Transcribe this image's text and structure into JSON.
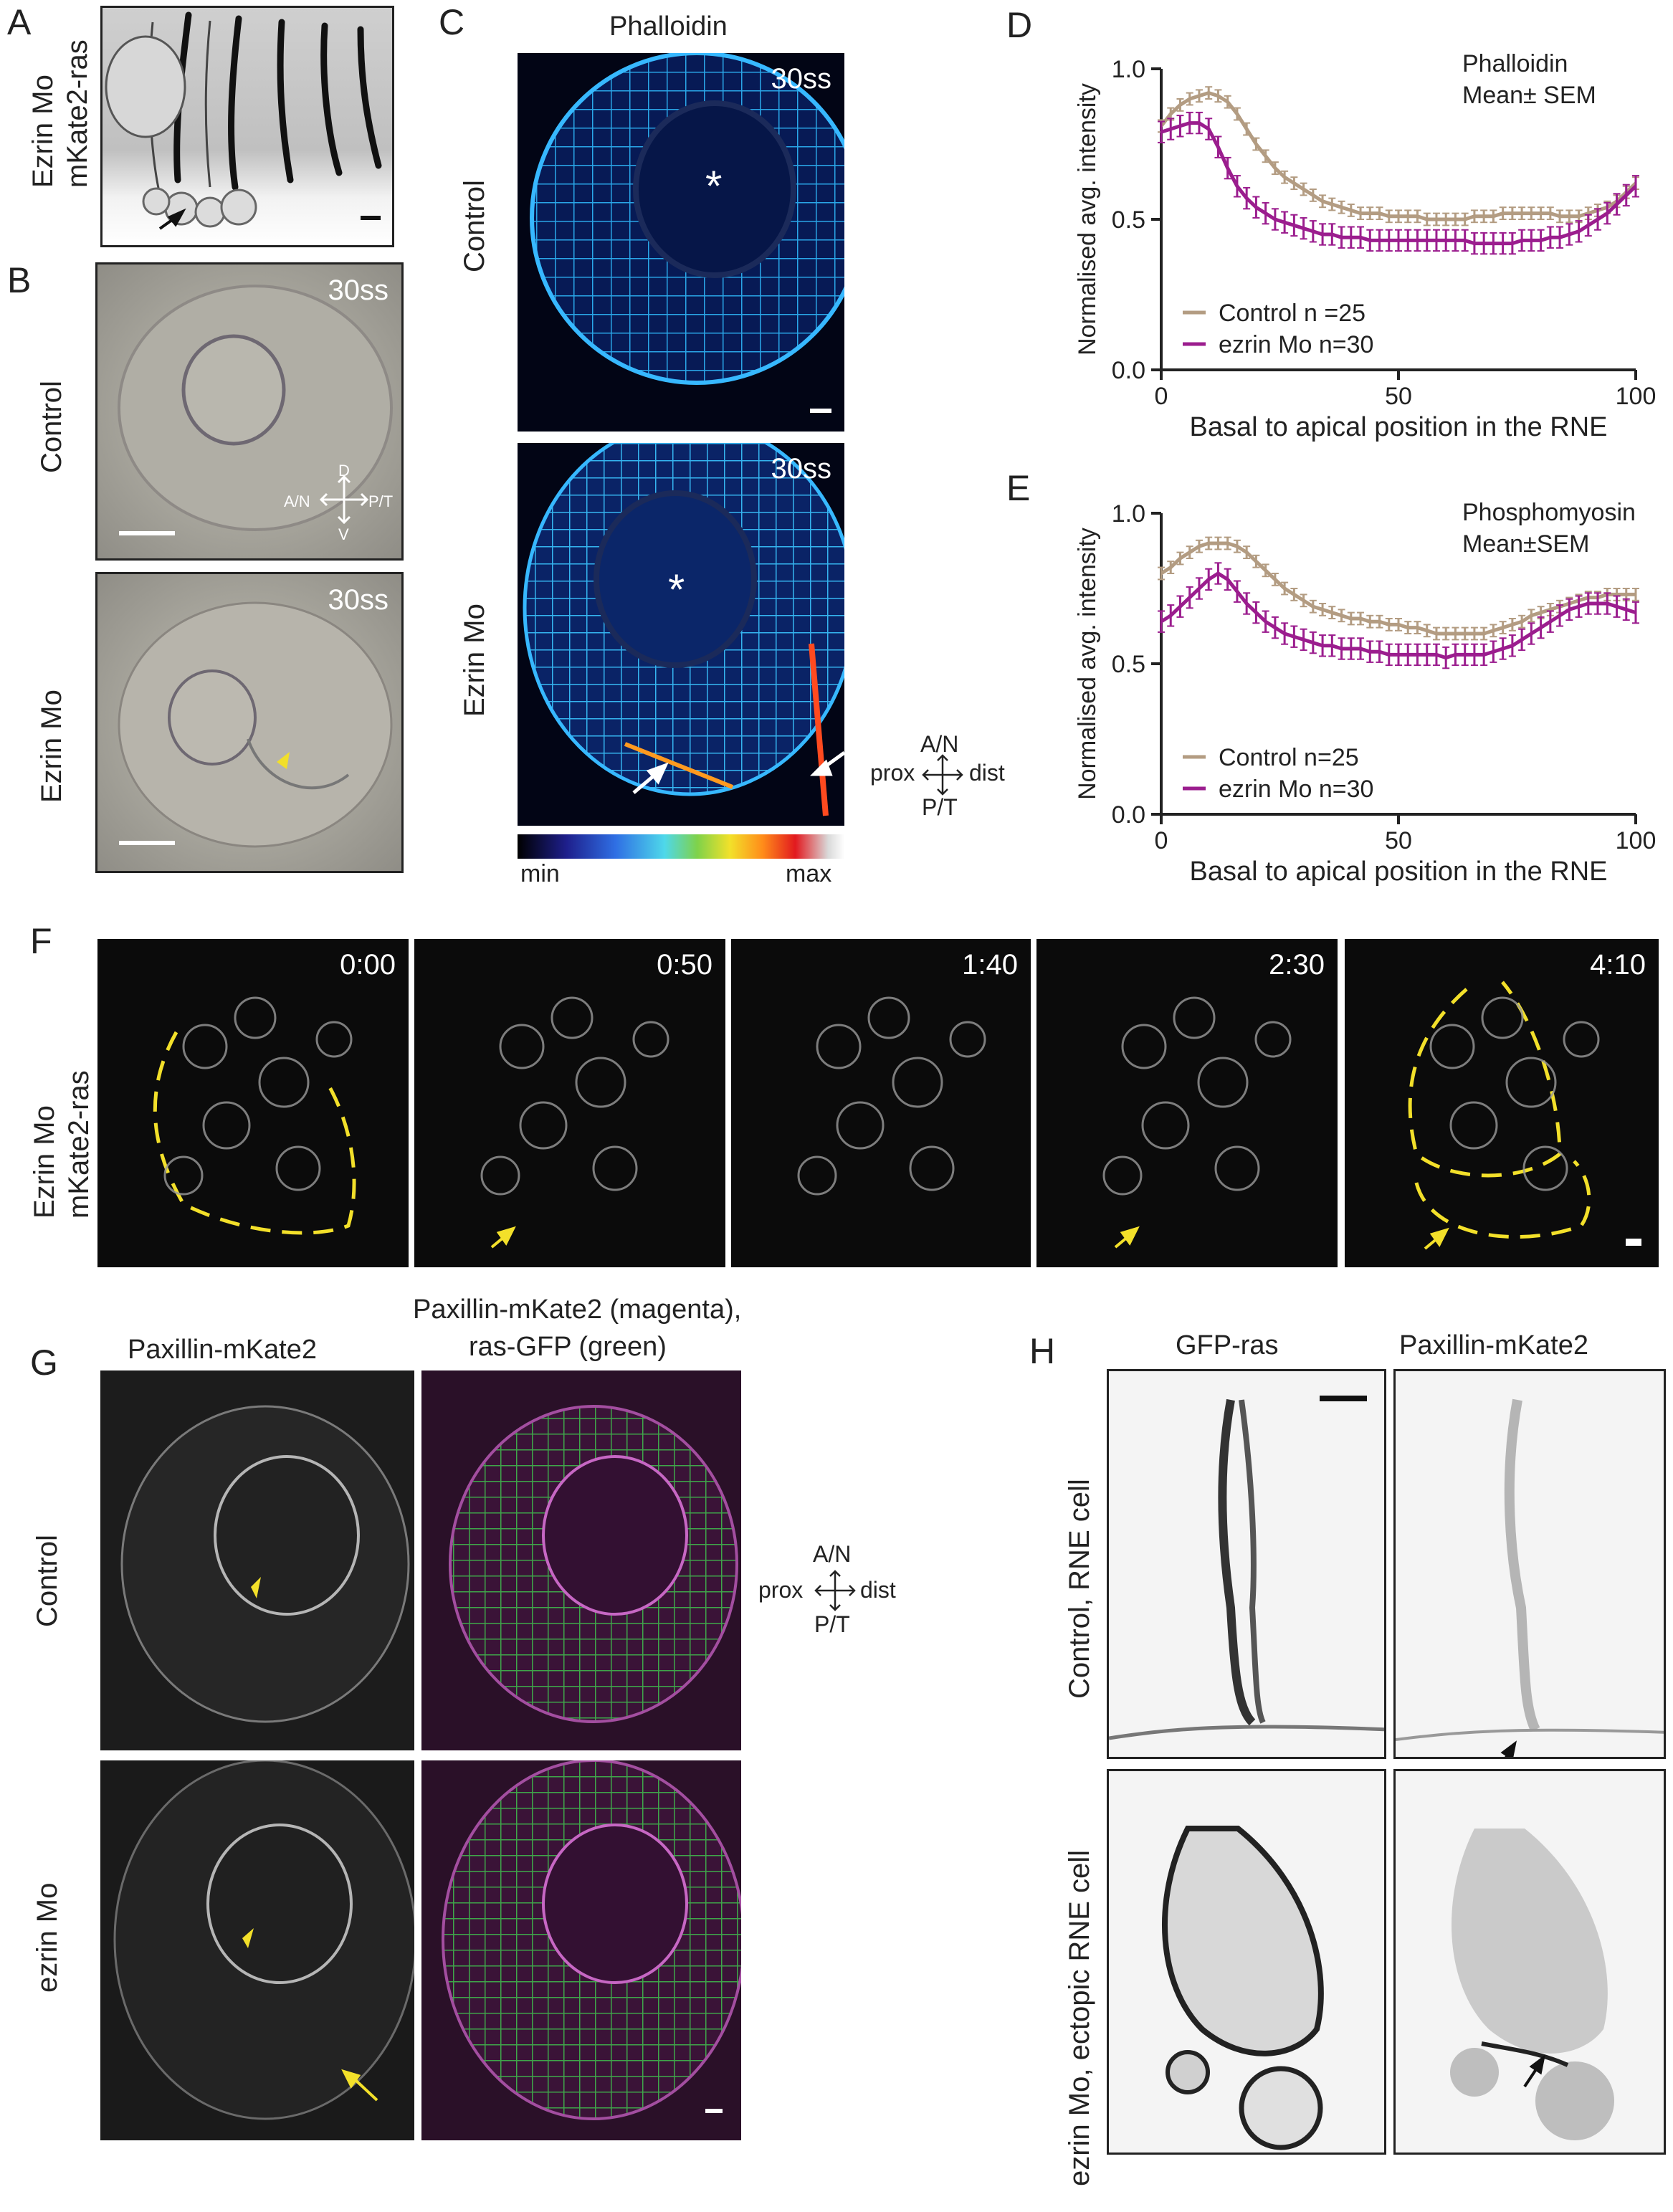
{
  "panel_letters": [
    "A",
    "B",
    "C",
    "D",
    "E",
    "F",
    "G",
    "H"
  ],
  "A": {
    "rot_label_1": "Ezrin Mo",
    "rot_label_2": "mKate2-ras"
  },
  "B": {
    "row1": "Control",
    "row2": "Ezrin Mo",
    "ts": "30ss",
    "axis": {
      "d": "D",
      "v": "V",
      "an": "A/N",
      "pt": "P/T"
    }
  },
  "C": {
    "title": "Phalloidin",
    "row1": "Control",
    "row2": "Ezrin Mo",
    "ts": "30ss",
    "colorbar_min": "min",
    "colorbar_max": "max",
    "axis": {
      "top": "A/N",
      "bottom": "P/T",
      "left": "prox",
      "right": "dist"
    }
  },
  "F": {
    "rot_label_1": "Ezrin Mo",
    "rot_label_2": "mKate2-ras",
    "times": [
      "0:00",
      "0:50",
      "1:40",
      "2:30",
      "4:10"
    ]
  },
  "G": {
    "col1": "Paxillin-mKate2",
    "col2_line1": "Paxillin-mKate2 (magenta),",
    "col2_line2": "ras-GFP (green)",
    "row1": "Control",
    "row2": "ezrin Mo",
    "axis": {
      "top": "A/N",
      "bottom": "P/T",
      "left": "prox",
      "right": "dist"
    }
  },
  "H": {
    "col1": "GFP-ras",
    "col2": "Paxillin-mKate2",
    "row1": "Control, RNE cell",
    "row2": "ezrin Mo, ectopic RNE cell"
  },
  "chart_data": [
    {
      "type": "line",
      "panel": "D",
      "annotation_1": "Phalloidin",
      "annotation_2": "Mean± SEM",
      "xlabel": "Basal to apical position in the RNE",
      "ylabel": "Normalised avg.  intensity",
      "xlim": [
        0,
        100
      ],
      "ylim": [
        0,
        1.0
      ],
      "xticks": [
        "0",
        "50",
        "100"
      ],
      "yticks": [
        "0.0",
        "0.5",
        "1.0"
      ],
      "x": [
        0,
        2,
        4,
        6,
        8,
        10,
        12,
        14,
        16,
        18,
        20,
        22,
        24,
        26,
        28,
        30,
        32,
        34,
        36,
        38,
        40,
        42,
        44,
        46,
        48,
        50,
        52,
        54,
        56,
        58,
        60,
        62,
        64,
        66,
        68,
        70,
        72,
        74,
        76,
        78,
        80,
        82,
        84,
        86,
        88,
        90,
        92,
        94,
        96,
        98,
        100
      ],
      "series": [
        {
          "name": "Control n =25",
          "color": "#b39c82",
          "sem": 0.02,
          "values": [
            0.81,
            0.85,
            0.88,
            0.9,
            0.91,
            0.92,
            0.91,
            0.89,
            0.85,
            0.8,
            0.75,
            0.71,
            0.67,
            0.64,
            0.62,
            0.6,
            0.58,
            0.56,
            0.55,
            0.54,
            0.53,
            0.52,
            0.52,
            0.52,
            0.51,
            0.51,
            0.51,
            0.51,
            0.5,
            0.5,
            0.5,
            0.5,
            0.5,
            0.51,
            0.51,
            0.51,
            0.52,
            0.52,
            0.52,
            0.52,
            0.52,
            0.52,
            0.51,
            0.51,
            0.51,
            0.52,
            0.53,
            0.54,
            0.56,
            0.59,
            0.62
          ]
        },
        {
          "name": "ezrin Mo n=30",
          "color": "#9b1d8e",
          "sem": 0.035,
          "values": [
            0.79,
            0.8,
            0.81,
            0.82,
            0.82,
            0.8,
            0.74,
            0.67,
            0.61,
            0.57,
            0.54,
            0.52,
            0.5,
            0.49,
            0.48,
            0.47,
            0.46,
            0.45,
            0.45,
            0.44,
            0.44,
            0.44,
            0.43,
            0.43,
            0.43,
            0.43,
            0.43,
            0.43,
            0.43,
            0.43,
            0.43,
            0.43,
            0.43,
            0.42,
            0.42,
            0.42,
            0.42,
            0.42,
            0.43,
            0.43,
            0.43,
            0.44,
            0.44,
            0.45,
            0.46,
            0.48,
            0.5,
            0.52,
            0.55,
            0.58,
            0.61
          ]
        }
      ]
    },
    {
      "type": "line",
      "panel": "E",
      "annotation_1": "Phosphomyosin",
      "annotation_2": "Mean±SEM",
      "xlabel": "Basal to apical position in the RNE",
      "ylabel": "Normalised avg.  intensity",
      "xlim": [
        0,
        100
      ],
      "ylim": [
        0,
        1.0
      ],
      "xticks": [
        "0",
        "50",
        "100"
      ],
      "yticks": [
        "0.0",
        "0.5",
        "1.0"
      ],
      "x": [
        0,
        2,
        4,
        6,
        8,
        10,
        12,
        14,
        16,
        18,
        20,
        22,
        24,
        26,
        28,
        30,
        32,
        34,
        36,
        38,
        40,
        42,
        44,
        46,
        48,
        50,
        52,
        54,
        56,
        58,
        60,
        62,
        64,
        66,
        68,
        70,
        72,
        74,
        76,
        78,
        80,
        82,
        84,
        86,
        88,
        90,
        92,
        94,
        96,
        98,
        100
      ],
      "series": [
        {
          "name": "Control n=25",
          "color": "#b39c82",
          "sem": 0.02,
          "values": [
            0.8,
            0.82,
            0.85,
            0.87,
            0.89,
            0.9,
            0.9,
            0.9,
            0.89,
            0.87,
            0.84,
            0.81,
            0.78,
            0.75,
            0.73,
            0.71,
            0.69,
            0.68,
            0.67,
            0.66,
            0.65,
            0.65,
            0.64,
            0.64,
            0.63,
            0.63,
            0.62,
            0.62,
            0.61,
            0.6,
            0.6,
            0.6,
            0.6,
            0.6,
            0.6,
            0.61,
            0.62,
            0.63,
            0.64,
            0.66,
            0.67,
            0.68,
            0.69,
            0.7,
            0.71,
            0.72,
            0.72,
            0.73,
            0.73,
            0.73,
            0.73
          ]
        },
        {
          "name": "ezrin Mo n=30",
          "color": "#9b1d8e",
          "sem": 0.035,
          "values": [
            0.64,
            0.66,
            0.69,
            0.72,
            0.75,
            0.78,
            0.8,
            0.78,
            0.74,
            0.7,
            0.67,
            0.64,
            0.62,
            0.6,
            0.59,
            0.58,
            0.57,
            0.56,
            0.56,
            0.55,
            0.55,
            0.55,
            0.54,
            0.54,
            0.53,
            0.53,
            0.53,
            0.53,
            0.53,
            0.53,
            0.52,
            0.53,
            0.53,
            0.53,
            0.53,
            0.54,
            0.55,
            0.56,
            0.58,
            0.6,
            0.62,
            0.64,
            0.66,
            0.68,
            0.69,
            0.7,
            0.7,
            0.7,
            0.69,
            0.68,
            0.67
          ]
        }
      ]
    }
  ]
}
